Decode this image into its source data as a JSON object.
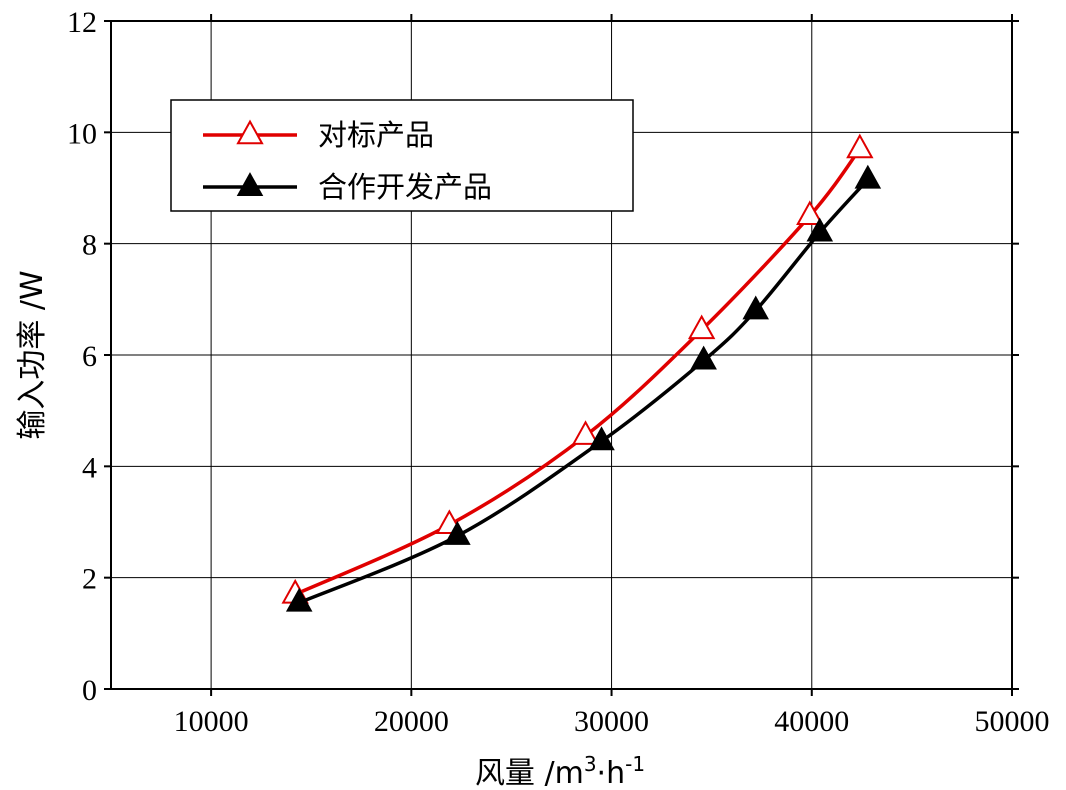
{
  "chart_data": {
    "type": "line",
    "title": "",
    "xlabel": "风量 /m³·h⁻¹",
    "xlabel_parts": {
      "main": "风量 /m",
      "sup1": "3",
      "mid": "·h",
      "sup2": "-1"
    },
    "ylabel": "输入功率 /W",
    "xlim": [
      5000,
      50000
    ],
    "ylim": [
      0,
      12
    ],
    "xticks": [
      10000,
      20000,
      30000,
      40000,
      50000
    ],
    "yticks": [
      0,
      2,
      4,
      6,
      8,
      10,
      12
    ],
    "xtick_labels": [
      "10000",
      "20000",
      "30000",
      "40000",
      "50000"
    ],
    "ytick_labels": [
      "0",
      "2",
      "4",
      "6",
      "8",
      "10",
      "12"
    ],
    "grid": true,
    "legend_position": "top-left",
    "series": [
      {
        "name": "对标产品",
        "color": "#e00000",
        "marker": "triangle-open",
        "x": [
          14200,
          21900,
          28700,
          34500,
          39900,
          42400
        ],
        "y": [
          1.7,
          2.95,
          4.55,
          6.45,
          8.5,
          9.7
        ]
      },
      {
        "name": "合作开发产品",
        "color": "#000000",
        "marker": "triangle-filled",
        "x": [
          14400,
          22300,
          29500,
          34600,
          37200,
          40400,
          42800
        ],
        "y": [
          1.55,
          2.75,
          4.45,
          5.9,
          6.8,
          8.2,
          9.15
        ]
      }
    ]
  }
}
